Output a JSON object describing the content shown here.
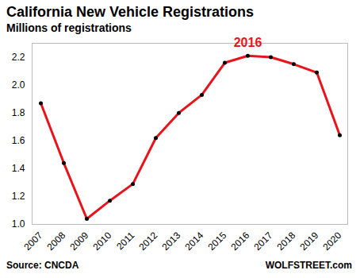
{
  "chart_data": {
    "type": "line",
    "title": "California New Vehicle Registrations",
    "subtitle": "Millions of registrations",
    "source": "Source: CNCDA",
    "credit": "WOLFSTREET.com",
    "categories": [
      "2007",
      "2008",
      "2009",
      "2010",
      "2011",
      "2012",
      "2013",
      "2014",
      "2015",
      "2016",
      "2017",
      "2018",
      "2019",
      "2020"
    ],
    "values": [
      1.87,
      1.44,
      1.04,
      1.17,
      1.29,
      1.62,
      1.8,
      1.93,
      2.16,
      2.21,
      2.2,
      2.15,
      2.09,
      1.64
    ],
    "color": "#e8141b",
    "marker": "circle",
    "ylim": [
      1.0,
      2.3
    ],
    "yticks": [
      {
        "value": 1,
        "label": "1.0"
      },
      1.2,
      1.4,
      1.6,
      1.8,
      {
        "value": 2,
        "label": "2.0"
      },
      2.2
    ],
    "grid": false,
    "annotations": [
      {
        "text": "2016",
        "x": "2016",
        "color": "#e8141b"
      }
    ]
  }
}
